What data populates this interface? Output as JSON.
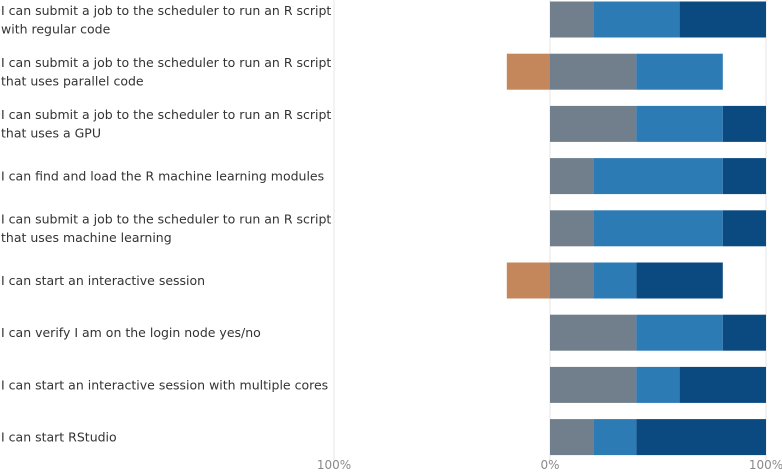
{
  "chart_data": {
    "type": "bar",
    "orientation": "horizontal",
    "stacked": true,
    "diverging": true,
    "xlim": [
      -100,
      100
    ],
    "x_ticks": [
      "100%",
      "0%",
      "100%"
    ],
    "grid": true,
    "legend": "none",
    "colors": {
      "negative": "#c4875c",
      "neutral": "#717f8d",
      "agree": "#2d7bb5",
      "strongly_agree": "#0b4a80",
      "gridline": "#e6e6e6"
    },
    "categories": [
      "I can submit a job to the scheduler to run an R script with regular code",
      "I can submit a job to the scheduler to run an R script that uses parallel code",
      "I can submit a job to the scheduler to run an R script that uses a GPU",
      "I can find and load the R machine learning modules",
      "I can submit a job to the scheduler to run an R script that uses machine learning",
      "I can start an interactive session",
      "I can verify I am on the login node yes/no",
      "I can start an interactive session with multiple cores",
      "I can start RStudio"
    ],
    "category_lines": [
      [
        "I can submit a job to the scheduler to run an R script",
        "with regular code"
      ],
      [
        "I can submit a job to the scheduler to run an R script",
        "that uses parallel code"
      ],
      [
        "I can submit a job to the scheduler to run an R script",
        "that uses a GPU"
      ],
      [
        "I can find and load the R machine learning modules"
      ],
      [
        "I can submit a job to the scheduler to run an R script",
        "that uses machine learning"
      ],
      [
        "I can start an interactive session"
      ],
      [
        "I can verify I am on the login node yes/no"
      ],
      [
        "I can start an interactive session with multiple cores"
      ],
      [
        "I can start RStudio"
      ]
    ],
    "series": [
      {
        "key": "negative",
        "values": [
          0,
          20,
          0,
          0,
          0,
          20,
          0,
          0,
          0
        ]
      },
      {
        "key": "neutral",
        "values": [
          20,
          40,
          40,
          20,
          20,
          20,
          40,
          40,
          20
        ]
      },
      {
        "key": "agree",
        "values": [
          40,
          40,
          40,
          60,
          60,
          20,
          40,
          20,
          20
        ]
      },
      {
        "key": "strongly_agree",
        "values": [
          40,
          0,
          20,
          20,
          20,
          40,
          20,
          40,
          60
        ]
      }
    ]
  }
}
